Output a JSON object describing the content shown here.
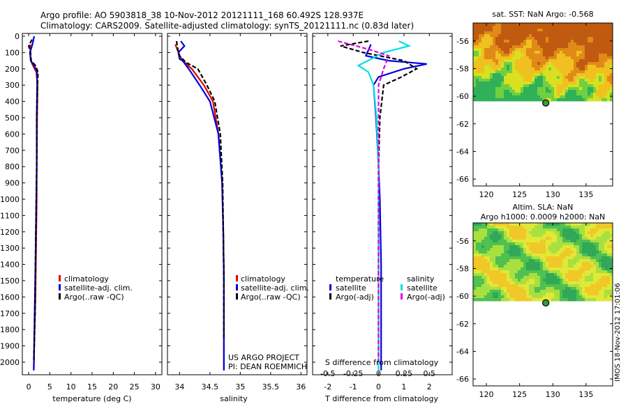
{
  "header": {
    "line1": "Argo profile: AO 5903818_38 10-Nov-2012 20121111_168 60.492S 128.937E",
    "line2": "Climatology: CARS2009. Satellite-adjusted climatology: synTS_20121111.nc (0.83d later)"
  },
  "colors": {
    "climatology": "#e00000",
    "satellite": "#0000e0",
    "argo": "#000000",
    "sal_satellite": "#00e0e0",
    "sal_argo": "#e000e0"
  },
  "chart_data": [
    {
      "type": "line",
      "xlabel": "temperature (deg C)",
      "xticks": [
        0,
        5,
        10,
        15,
        20,
        25,
        30
      ],
      "xlim": [
        -1.5,
        31.5
      ],
      "ylim": [
        0,
        2060
      ],
      "yticks": [
        0,
        100,
        200,
        300,
        400,
        500,
        600,
        700,
        800,
        900,
        1000,
        1100,
        1200,
        1300,
        1400,
        1500,
        1600,
        1700,
        1800,
        1900,
        2000
      ],
      "legend": [
        "climatology",
        "satellite-adj. clim.",
        "Argo(..raw -QC)"
      ],
      "series": [
        {
          "name": "climatology",
          "style": "climatology",
          "x": [
            0.4,
            0.4,
            0.5,
            1.0,
            1.8,
            2.1,
            2.0,
            1.9,
            1.9,
            1.8,
            1.7,
            1.6,
            1.4,
            1.2
          ],
          "y": [
            50,
            100,
            150,
            180,
            220,
            300,
            500,
            800,
            1000,
            1200,
            1400,
            1600,
            1800,
            2050
          ]
        },
        {
          "name": "satellite-adj. clim.",
          "style": "satellite",
          "x": [
            1.3,
            0.9,
            0.3,
            0.5,
            1.3,
            2.0,
            2.0,
            1.9,
            1.9,
            1.8,
            1.7,
            1.6,
            1.4,
            1.2
          ],
          "y": [
            0,
            50,
            100,
            150,
            180,
            220,
            300,
            500,
            800,
            1000,
            1200,
            1400,
            1700,
            2050
          ]
        },
        {
          "name": "Argo(..raw -QC)",
          "style": "argo",
          "x": [
            0.8,
            0.0,
            0.4,
            0.6,
            1.6,
            2.2,
            2.1,
            1.9,
            1.9,
            1.8,
            1.7,
            1.6,
            1.5,
            1.2
          ],
          "y": [
            20,
            60,
            90,
            150,
            180,
            220,
            300,
            500,
            800,
            1000,
            1200,
            1400,
            1700,
            2000
          ]
        }
      ]
    },
    {
      "type": "line",
      "xlabel": "salinity",
      "xticks": [
        34,
        34.5,
        35,
        35.5,
        36
      ],
      "xlim": [
        33.8,
        36.1
      ],
      "ylim": [
        0,
        2060
      ],
      "legend": [
        "climatology",
        "satellite-adj. clim.",
        "Argo(..raw -QC)"
      ],
      "annotations": [
        "US ARGO PROJECT",
        "PI: DEAN ROEMMICH"
      ],
      "series": [
        {
          "name": "climatology",
          "style": "climatology",
          "x": [
            33.93,
            33.98,
            34.0,
            34.05,
            34.2,
            34.4,
            34.55,
            34.64,
            34.7,
            34.72,
            34.73,
            34.73,
            34.73
          ],
          "y": [
            50,
            100,
            120,
            150,
            200,
            300,
            400,
            600,
            900,
            1200,
            1500,
            1800,
            2050
          ]
        },
        {
          "name": "satellite-adj. clim.",
          "style": "satellite",
          "x": [
            34.02,
            34.08,
            33.98,
            34.0,
            34.05,
            34.15,
            34.33,
            34.5,
            34.64,
            34.7,
            34.72,
            34.73,
            34.73,
            34.73
          ],
          "y": [
            30,
            60,
            100,
            140,
            150,
            200,
            300,
            400,
            600,
            900,
            1200,
            1500,
            1800,
            2050
          ]
        },
        {
          "name": "Argo(..raw -QC)",
          "style": "argo",
          "x": [
            33.95,
            33.97,
            34.0,
            34.1,
            34.3,
            34.45,
            34.58,
            34.67,
            34.71,
            34.72,
            34.73,
            34.73
          ],
          "y": [
            30,
            80,
            120,
            160,
            200,
            300,
            400,
            600,
            900,
            1200,
            1500,
            1850
          ]
        }
      ]
    },
    {
      "type": "line",
      "xlabel": "T difference from climatology",
      "x2label": "S difference from climatology",
      "xticks": [
        -2,
        -1,
        0,
        1,
        2
      ],
      "x2ticks": [
        -0.5,
        -0.25,
        0,
        0.25,
        0.5
      ],
      "x2ticklabels": [
        "-0.5",
        "-0.25",
        "0",
        "0.25",
        "0.5"
      ],
      "xlim": [
        -2.6,
        2.9
      ],
      "ylim": [
        0,
        2060
      ],
      "legend_titles": [
        "temperature",
        "salinity"
      ],
      "legend": [
        "satellite",
        "Argo(-adj)",
        "satellite",
        "Argo(-adj)"
      ],
      "series": [
        {
          "name": "satellite",
          "style": "satellite",
          "axis": "T",
          "x": [
            -0.3,
            -0.5,
            0.4,
            1.9,
            1.0,
            0.0,
            -0.2,
            -0.1,
            0.0,
            0.05,
            0.1,
            0.1,
            0.1
          ],
          "y": [
            50,
            120,
            150,
            170,
            200,
            250,
            300,
            500,
            800,
            1000,
            1400,
            1800,
            2050
          ]
        },
        {
          "name": "Argo(-adj)",
          "style": "argo",
          "axis": "T",
          "x": [
            -0.4,
            -1.5,
            -0.6,
            1.0,
            1.5,
            0.9,
            0.2,
            0.05,
            0.0,
            0.0,
            0.0,
            0.0
          ],
          "y": [
            30,
            60,
            100,
            150,
            200,
            250,
            300,
            500,
            800,
            1200,
            1600,
            2000
          ]
        },
        {
          "name": "satellite",
          "style": "sal_satellite",
          "axis": "S",
          "x": [
            0.2,
            0.3,
            0.05,
            -0.2,
            -0.1,
            -0.05,
            -0.02,
            0.0,
            0.0,
            0.0
          ],
          "y": [
            30,
            60,
            100,
            180,
            220,
            300,
            500,
            800,
            1400,
            2050
          ]
        },
        {
          "name": "Argo(-adj)",
          "style": "sal_argo",
          "axis": "S",
          "x": [
            -0.4,
            -0.1,
            0.1,
            0.05,
            0.0,
            0.0,
            0.0,
            0.0
          ],
          "y": [
            30,
            80,
            120,
            200,
            300,
            800,
            1400,
            2000
          ]
        }
      ]
    }
  ],
  "maps": {
    "sst_title": "sat. SST: NaN Argo: -0.568",
    "sla_title1": "Altim. SLA: NaN",
    "sla_title2": "Argo h1000: 0.0009 h2000: NaN",
    "lon_ticks": [
      "120",
      "125",
      "130",
      "135"
    ],
    "lat_ticks": [
      "-56",
      "-58",
      "-60",
      "-62",
      "-64",
      "-66"
    ]
  },
  "footer": {
    "stamp": "IMOS 18-Nov-2012 17:01:06"
  }
}
